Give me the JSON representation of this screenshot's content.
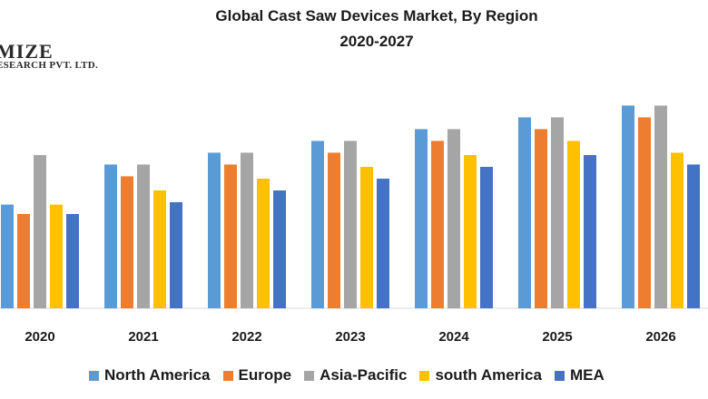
{
  "chart_data": {
    "type": "bar",
    "title": "Global Cast Saw Devices Market, By Region",
    "subtitle": "2020-2027",
    "xlabel": "",
    "ylabel": "",
    "ylim": [
      0,
      100
    ],
    "grid": false,
    "legend_position": "bottom",
    "categories": [
      "2020",
      "2021",
      "2022",
      "2023",
      "2024",
      "2025",
      "2026"
    ],
    "series": [
      {
        "name": "North America",
        "color": "#5b9bd5",
        "values": [
          44,
          61,
          66,
          71,
          76,
          81,
          86
        ]
      },
      {
        "name": "Europe",
        "color": "#ed7d31",
        "values": [
          40,
          56,
          61,
          66,
          71,
          76,
          81
        ]
      },
      {
        "name": "Asia-Pacific",
        "color": "#a5a5a5",
        "values": [
          65,
          61,
          66,
          71,
          76,
          81,
          86
        ]
      },
      {
        "name": "south  America",
        "color": "#ffc000",
        "values": [
          44,
          50,
          55,
          60,
          65,
          71,
          66
        ]
      },
      {
        "name": "MEA",
        "color": "#4472c4",
        "values": [
          40,
          45,
          50,
          55,
          60,
          65,
          61
        ]
      }
    ]
  },
  "logo": {
    "main": "MIZE",
    "sub": "ESEARCH PVT. LTD."
  }
}
